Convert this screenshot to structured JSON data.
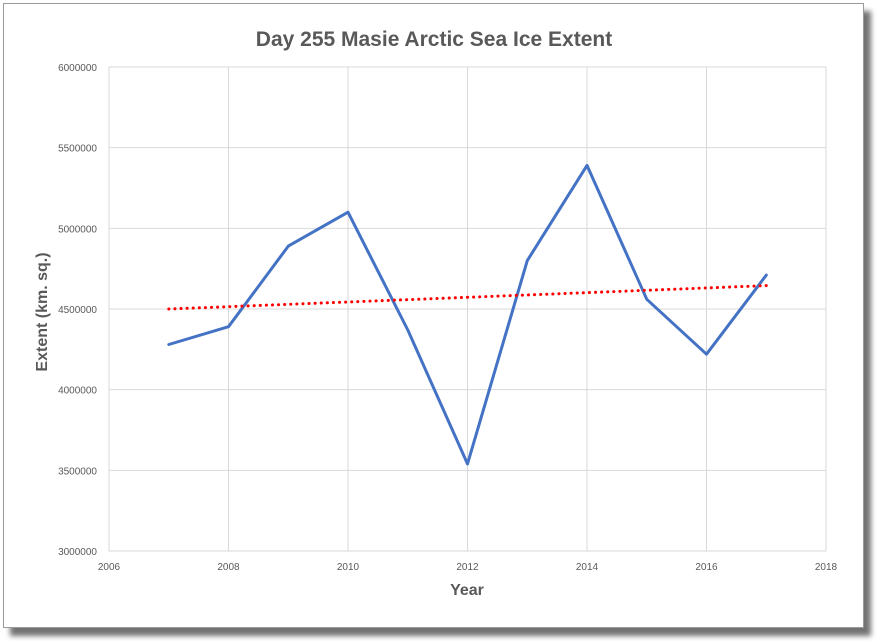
{
  "chart_data": {
    "type": "line",
    "title": "Day 255 Masie Arctic Sea Ice Extent",
    "xlabel": "Year",
    "ylabel": "Extent (km. sq.)",
    "xlim": [
      2006,
      2018
    ],
    "ylim": [
      3000000,
      6000000
    ],
    "x_ticks": [
      2006,
      2008,
      2010,
      2012,
      2014,
      2016,
      2018
    ],
    "y_ticks": [
      3000000,
      3500000,
      4000000,
      4500000,
      5000000,
      5500000,
      6000000
    ],
    "x_tick_labels": [
      "2006",
      "2008",
      "2010",
      "2012",
      "2014",
      "2016",
      "2018"
    ],
    "y_tick_labels": [
      "3000000",
      "3500000",
      "4000000",
      "4500000",
      "5000000",
      "5500000",
      "6000000"
    ],
    "grid": true,
    "series": [
      {
        "color": "#4472c4",
        "style": "solid",
        "x": [
          2007,
          2008,
          2009,
          2010,
          2011,
          2012,
          2013,
          2014,
          2015,
          2016,
          2017
        ],
        "y": [
          4280000,
          4390000,
          4890000,
          5100000,
          4370000,
          3540000,
          4800000,
          5390000,
          4560000,
          4220000,
          4710000
        ]
      },
      {
        "color": "#ff0000",
        "style": "dotted",
        "x": [
          2007,
          2017
        ],
        "y": [
          4500000,
          4645000
        ]
      }
    ]
  }
}
